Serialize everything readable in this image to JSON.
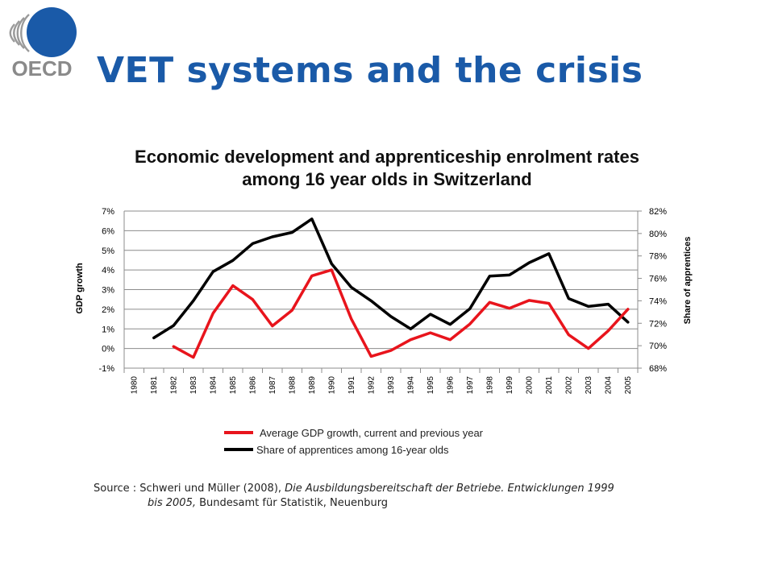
{
  "slide": {
    "title": "VET systems and the crisis",
    "logo_text": "OECD",
    "brand_color": "#1a5aa8"
  },
  "chart_data": {
    "type": "line",
    "title_line1": "Economic development and apprenticeship enrolment rates",
    "title_line2": "among 16 year olds in Switzerland",
    "ylabel": "GDP growth",
    "y2label": "Share of apprentices",
    "categories": [
      "1980",
      "1981",
      "1982",
      "1983",
      "1984",
      "1985",
      "1986",
      "1987",
      "1988",
      "1989",
      "1990",
      "1991",
      "1992",
      "1993",
      "1994",
      "1995",
      "1996",
      "1997",
      "1998",
      "1999",
      "2000",
      "2001",
      "2002",
      "2003",
      "2004",
      "2005"
    ],
    "y_ticks": [
      "-1%",
      "0%",
      "1%",
      "2%",
      "3%",
      "4%",
      "5%",
      "6%",
      "7%"
    ],
    "y2_ticks": [
      "68%",
      "70%",
      "72%",
      "74%",
      "76%",
      "78%",
      "80%",
      "82%"
    ],
    "ylim": [
      -1,
      7
    ],
    "y2lim": [
      68,
      82
    ],
    "series": [
      {
        "name": "Average GDP growth, current and previous year",
        "axis": "left",
        "color": "#e8141c",
        "values": [
          null,
          null,
          0.1,
          -0.45,
          1.8,
          3.2,
          2.5,
          1.15,
          1.95,
          3.7,
          4.0,
          1.5,
          -0.4,
          -0.1,
          0.45,
          0.8,
          0.45,
          1.25,
          2.35,
          2.05,
          2.45,
          2.3,
          0.7,
          0.0,
          0.9,
          2.0
        ]
      },
      {
        "name": "Share of apprentices among 16-year olds",
        "axis": "right",
        "color": "#000000",
        "values": [
          null,
          70.7,
          71.8,
          74.0,
          76.6,
          77.6,
          79.1,
          79.7,
          80.1,
          81.3,
          77.3,
          75.2,
          74.0,
          72.6,
          71.5,
          72.8,
          71.9,
          73.3,
          76.2,
          76.3,
          77.4,
          78.2,
          74.2,
          73.5,
          73.7,
          72.1
        ]
      }
    ],
    "grid": "horizontal",
    "legend_position": "bottom"
  },
  "source": {
    "prefix": "Source : Schweri und Müller (2008), ",
    "italic1": "Die Ausbildungsbereitschaft der Betriebe. Entwicklungen 1999",
    "italic2": "bis 2005,",
    "suffix": " Bundesamt für Statistik, Neuenburg"
  }
}
